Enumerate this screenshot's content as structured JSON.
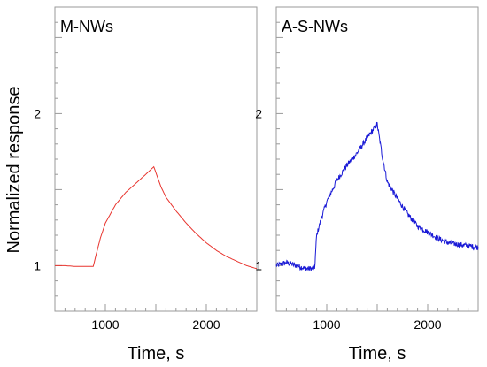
{
  "chart_data": {
    "type": "line",
    "ylabel": "Normalized response",
    "xlabel": "Time, s",
    "grid": false,
    "panels": [
      {
        "title": "M-NWs",
        "color": "#e8342e",
        "noise": 0,
        "xlim": [
          500,
          2500
        ],
        "ylim": [
          0.7,
          2.7
        ],
        "xticks": [
          1000,
          2000
        ],
        "yticks": [
          1,
          2
        ],
        "series": {
          "x": [
            500,
            600,
            700,
            800,
            880,
            900,
            950,
            1000,
            1100,
            1200,
            1300,
            1400,
            1480,
            1550,
            1600,
            1700,
            1800,
            1900,
            2000,
            2100,
            2200,
            2300,
            2400,
            2500
          ],
          "y": [
            1.0,
            1.0,
            0.995,
            0.995,
            0.995,
            1.05,
            1.18,
            1.28,
            1.4,
            1.48,
            1.54,
            1.6,
            1.65,
            1.52,
            1.45,
            1.36,
            1.28,
            1.21,
            1.15,
            1.1,
            1.06,
            1.03,
            1.0,
            0.98
          ]
        }
      },
      {
        "title": "A-S-NWs",
        "color": "#1a1ad6",
        "noise": 0.018,
        "xlim": [
          500,
          2500
        ],
        "ylim": [
          0.7,
          2.7
        ],
        "xticks": [
          1000,
          2000
        ],
        "yticks": [
          1,
          2
        ],
        "series": {
          "x": [
            500,
            600,
            700,
            800,
            880,
            900,
            950,
            1000,
            1100,
            1200,
            1300,
            1400,
            1500,
            1550,
            1600,
            1700,
            1800,
            1900,
            2000,
            2100,
            2200,
            2300,
            2400,
            2500
          ],
          "y": [
            1.0,
            1.02,
            1.0,
            0.98,
            0.98,
            1.2,
            1.32,
            1.42,
            1.56,
            1.66,
            1.74,
            1.84,
            1.93,
            1.72,
            1.55,
            1.44,
            1.34,
            1.26,
            1.22,
            1.18,
            1.15,
            1.14,
            1.13,
            1.12
          ]
        }
      }
    ]
  }
}
